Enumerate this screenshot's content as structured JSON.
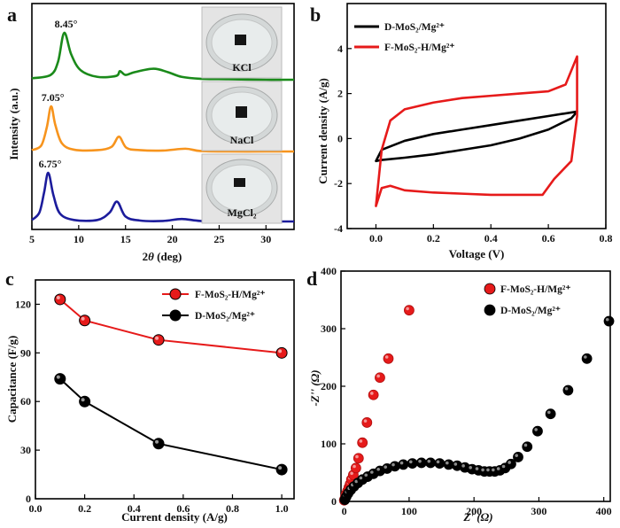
{
  "chart_data": [
    {
      "panel": "a",
      "type": "line",
      "xlabel": "2θ (deg)",
      "ylabel": "Intensity (a.u.)",
      "xlim": [
        5,
        33
      ],
      "xticks": [
        5,
        10,
        15,
        20,
        25,
        30
      ],
      "series": [
        {
          "name": "KCl",
          "color": "#1a8a1a",
          "peak_label": "8.45°",
          "x": [
            5,
            7,
            7.8,
            8.45,
            9.2,
            10.2,
            12,
            14,
            14.4,
            15,
            16,
            18,
            19.5,
            21,
            23,
            26,
            30,
            33
          ],
          "y": [
            0.05,
            0.12,
            0.4,
            1.0,
            0.55,
            0.22,
            0.08,
            0.1,
            0.2,
            0.12,
            0.18,
            0.25,
            0.18,
            0.08,
            0.04,
            0.03,
            0.02,
            0.02
          ]
        },
        {
          "name": "NaCl",
          "color": "#f7941d",
          "peak_label": "7.05°",
          "x": [
            5,
            6,
            6.6,
            7.05,
            7.5,
            8.2,
            9.5,
            12,
            13.5,
            14.3,
            15.1,
            16.5,
            19,
            21.4,
            23,
            26,
            30,
            33
          ],
          "y": [
            0.05,
            0.15,
            0.55,
            1.0,
            0.6,
            0.2,
            0.06,
            0.05,
            0.12,
            0.34,
            0.1,
            0.05,
            0.04,
            0.08,
            0.03,
            0.02,
            0.02,
            0.02
          ]
        },
        {
          "name": "MgCl₂",
          "color": "#1c1c9c",
          "peak_label": "6.75°",
          "x": [
            5,
            5.8,
            6.3,
            6.75,
            7.3,
            8,
            9.5,
            12,
            13.3,
            14.1,
            15,
            16.5,
            19,
            21,
            23,
            26,
            30,
            33
          ],
          "y": [
            0.05,
            0.2,
            0.6,
            1.0,
            0.55,
            0.18,
            0.05,
            0.05,
            0.2,
            0.42,
            0.12,
            0.04,
            0.03,
            0.07,
            0.03,
            0.02,
            0.02,
            0.02
          ]
        }
      ]
    },
    {
      "panel": "b",
      "type": "line",
      "xlabel": "Voltage (V)",
      "ylabel": "Current density (A/g)",
      "xlim": [
        -0.1,
        0.8
      ],
      "ylim": [
        -4,
        6
      ],
      "xticks": [
        0.0,
        0.2,
        0.4,
        0.6,
        0.8
      ],
      "yticks": [
        -4,
        -2,
        0,
        2,
        4
      ],
      "legend_position": "top-left",
      "series": [
        {
          "name": "D-MoS₂/Mg²⁺",
          "color": "#000000",
          "x": [
            0.0,
            0.02,
            0.1,
            0.2,
            0.3,
            0.4,
            0.5,
            0.6,
            0.7,
            0.68,
            0.6,
            0.5,
            0.4,
            0.3,
            0.2,
            0.1,
            0.02,
            0.0
          ],
          "y": [
            -1.0,
            -0.5,
            -0.1,
            0.2,
            0.4,
            0.6,
            0.8,
            1.0,
            1.2,
            0.9,
            0.4,
            0.0,
            -0.3,
            -0.5,
            -0.7,
            -0.85,
            -0.95,
            -1.0
          ]
        },
        {
          "name": "F-MoS₂-H/Mg²⁺",
          "color": "#e61a1a",
          "x": [
            0.0,
            0.02,
            0.05,
            0.1,
            0.2,
            0.3,
            0.4,
            0.5,
            0.6,
            0.66,
            0.7,
            0.7,
            0.68,
            0.62,
            0.58,
            0.5,
            0.4,
            0.3,
            0.2,
            0.1,
            0.05,
            0.02,
            0.0
          ],
          "y": [
            -3.0,
            -0.5,
            0.8,
            1.3,
            1.6,
            1.8,
            1.9,
            2.0,
            2.1,
            2.4,
            3.65,
            1.0,
            -1.0,
            -1.8,
            -2.5,
            -2.5,
            -2.5,
            -2.45,
            -2.4,
            -2.3,
            -2.1,
            -2.2,
            -3.0
          ]
        }
      ]
    },
    {
      "panel": "c",
      "type": "line",
      "xlabel": "Current density (A/g)",
      "ylabel": "Capacitance (F/g)",
      "xlim": [
        0.0,
        1.05
      ],
      "ylim": [
        0,
        135
      ],
      "xticks": [
        0.0,
        0.2,
        0.4,
        0.6,
        0.8,
        1.0
      ],
      "yticks": [
        0,
        30,
        60,
        90,
        120
      ],
      "legend_position": "top-right",
      "series": [
        {
          "name": "F-MoS₂-H/Mg²⁺",
          "color": "#e61a1a",
          "x": [
            0.1,
            0.2,
            0.5,
            1.0
          ],
          "y": [
            123,
            110,
            98,
            90
          ]
        },
        {
          "name": "D-MoS₂/Mg²⁺",
          "color": "#000000",
          "x": [
            0.1,
            0.2,
            0.5,
            1.0
          ],
          "y": [
            74,
            60,
            34,
            18
          ]
        }
      ]
    },
    {
      "panel": "d",
      "type": "scatter",
      "xlabel": "Z' (Ω)",
      "ylabel": "-Z'' (Ω)",
      "xlim": [
        -5,
        410
      ],
      "ylim": [
        0,
        400
      ],
      "xticks": [
        0,
        100,
        200,
        300,
        400
      ],
      "yticks": [
        0,
        100,
        200,
        300,
        400
      ],
      "legend_position": "top-left",
      "series": [
        {
          "name": "F-MoS₂-H/Mg²⁺",
          "color": "#e61a1a",
          "x": [
            0,
            1,
            2,
            3,
            5,
            7,
            9,
            11,
            14,
            18,
            22,
            28,
            35,
            45,
            55,
            68,
            100
          ],
          "y": [
            2,
            5,
            9,
            13,
            18,
            24,
            30,
            38,
            46,
            58,
            75,
            102,
            137,
            185,
            215,
            248,
            332
          ]
        },
        {
          "name": "D-MoS₂/Mg²⁺",
          "color": "#000000",
          "x": [
            1,
            3,
            6,
            10,
            15,
            21,
            28,
            36,
            45,
            55,
            66,
            78,
            91,
            105,
            119,
            133,
            147,
            161,
            174,
            186,
            197,
            207,
            216,
            224,
            232,
            240,
            248,
            257,
            268,
            282,
            298,
            318,
            345,
            374,
            408
          ],
          "y": [
            3,
            8,
            14,
            20,
            26,
            32,
            38,
            43,
            48,
            53,
            57,
            61,
            64,
            66,
            67,
            67,
            66,
            64,
            62,
            59,
            56,
            54,
            52,
            52,
            52,
            54,
            58,
            65,
            77,
            95,
            122,
            152,
            193,
            248,
            313
          ]
        }
      ]
    }
  ],
  "labels": {
    "panel_a": "a",
    "panel_b": "b",
    "panel_c": "c",
    "panel_d": "d",
    "a_ylabel": "Intensity (a.u.)",
    "a_xlabel_theta": "θ",
    "a_xlabel_unit": "(deg)",
    "a_xlabel_two": "2",
    "b_ylabel": "Current density (A/g)",
    "b_xlabel": "Voltage (V)",
    "c_ylabel": "Capacitance (F/g)",
    "c_xlabel": "Current density (A/g)",
    "d_xlabel": "Z' (Ω)",
    "d_ylabel": "-Z'' (Ω)"
  },
  "photo_labels": [
    "KCl",
    "NaCl",
    "MgCl₂"
  ]
}
